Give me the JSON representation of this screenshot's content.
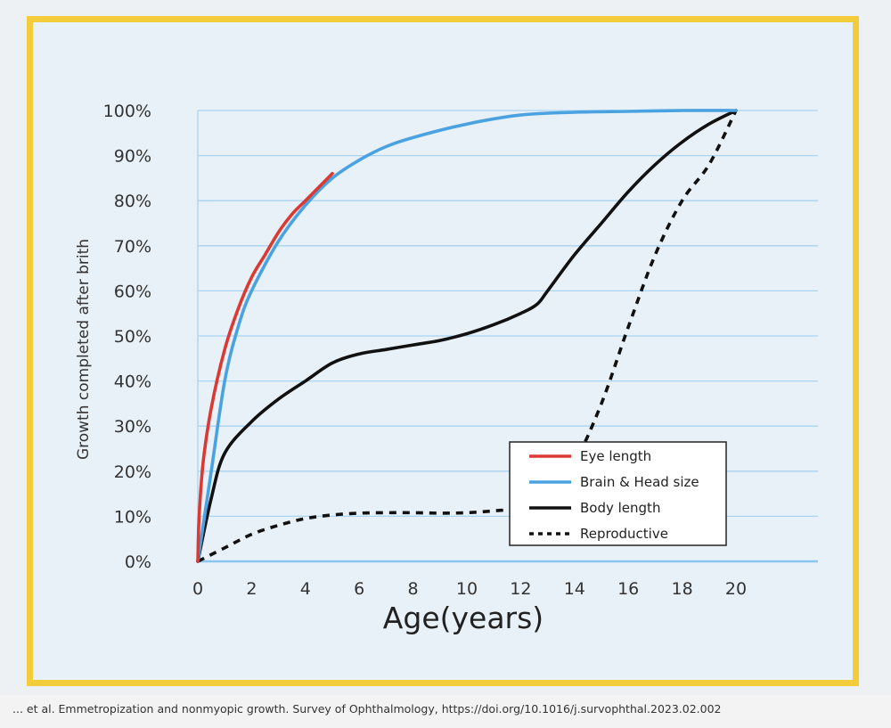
{
  "chart_data": {
    "type": "line",
    "xlabel": "Age(years)",
    "ylabel": "Growth completed after brith",
    "xlim": [
      0,
      20
    ],
    "ylim": [
      0,
      100
    ],
    "x_ticks": [
      "0",
      "2",
      "4",
      "6",
      "8",
      "10",
      "12",
      "14",
      "16",
      "18",
      "20"
    ],
    "y_ticks": [
      "0%",
      "10%",
      "20%",
      "30%",
      "40%",
      "50%",
      "60%",
      "70%",
      "80%",
      "90%",
      "100%"
    ],
    "grid": "horizontal",
    "legend_position": "bottom-right",
    "series": [
      {
        "name": "Eye length",
        "color": "#d93a33",
        "style": "solid",
        "points": [
          [
            0,
            0
          ],
          [
            0.05,
            10
          ],
          [
            0.2,
            22
          ],
          [
            0.5,
            34
          ],
          [
            1,
            47
          ],
          [
            1.5,
            56
          ],
          [
            2,
            63
          ],
          [
            2.5,
            68
          ],
          [
            3,
            73
          ],
          [
            3.5,
            77
          ],
          [
            4,
            80
          ],
          [
            4.5,
            83
          ],
          [
            5,
            86
          ]
        ]
      },
      {
        "name": "Brain & Head size",
        "color": "#4aa3e0",
        "style": "solid",
        "points": [
          [
            0,
            0
          ],
          [
            0.5,
            20
          ],
          [
            1,
            40
          ],
          [
            1.5,
            52
          ],
          [
            2,
            60
          ],
          [
            3,
            71
          ],
          [
            4,
            79
          ],
          [
            5,
            85
          ],
          [
            6,
            89
          ],
          [
            7,
            92
          ],
          [
            8,
            94
          ],
          [
            10,
            97
          ],
          [
            12,
            99
          ],
          [
            14,
            99.6
          ],
          [
            16,
            99.8
          ],
          [
            18,
            100
          ],
          [
            20,
            100
          ]
        ]
      },
      {
        "name": "Body length",
        "color": "#111111",
        "style": "solid",
        "points": [
          [
            0,
            0
          ],
          [
            0.5,
            14
          ],
          [
            1,
            24
          ],
          [
            2,
            31
          ],
          [
            3,
            36
          ],
          [
            4,
            40
          ],
          [
            5,
            44
          ],
          [
            6,
            46
          ],
          [
            7,
            47
          ],
          [
            8,
            48
          ],
          [
            9,
            49
          ],
          [
            10,
            50.5
          ],
          [
            11,
            52.5
          ],
          [
            12,
            55
          ],
          [
            12.6,
            57
          ],
          [
            13,
            60
          ],
          [
            14,
            68
          ],
          [
            15,
            75
          ],
          [
            16,
            82
          ],
          [
            17,
            88
          ],
          [
            18,
            93
          ],
          [
            19,
            97
          ],
          [
            20,
            100
          ]
        ]
      },
      {
        "name": "Reproductive",
        "color": "#111111",
        "style": "dashed",
        "points": [
          [
            0,
            0
          ],
          [
            1,
            3
          ],
          [
            2,
            6
          ],
          [
            3,
            8
          ],
          [
            4,
            9.5
          ],
          [
            5,
            10.3
          ],
          [
            6,
            10.7
          ],
          [
            7,
            10.8
          ],
          [
            8,
            10.8
          ],
          [
            9,
            10.7
          ],
          [
            10,
            10.8
          ],
          [
            11,
            11.2
          ],
          [
            12,
            12
          ],
          [
            13,
            15
          ],
          [
            14,
            22
          ],
          [
            15,
            35
          ],
          [
            16,
            52
          ],
          [
            17,
            68
          ],
          [
            18,
            80
          ],
          [
            19,
            88
          ],
          [
            20,
            100
          ]
        ]
      }
    ]
  },
  "citation": "... et al. Emmetropization and nonmyopic growth. Survey of Ophthalmology, https://doi.org/10.1016/j.survophthal.2023.02.002"
}
